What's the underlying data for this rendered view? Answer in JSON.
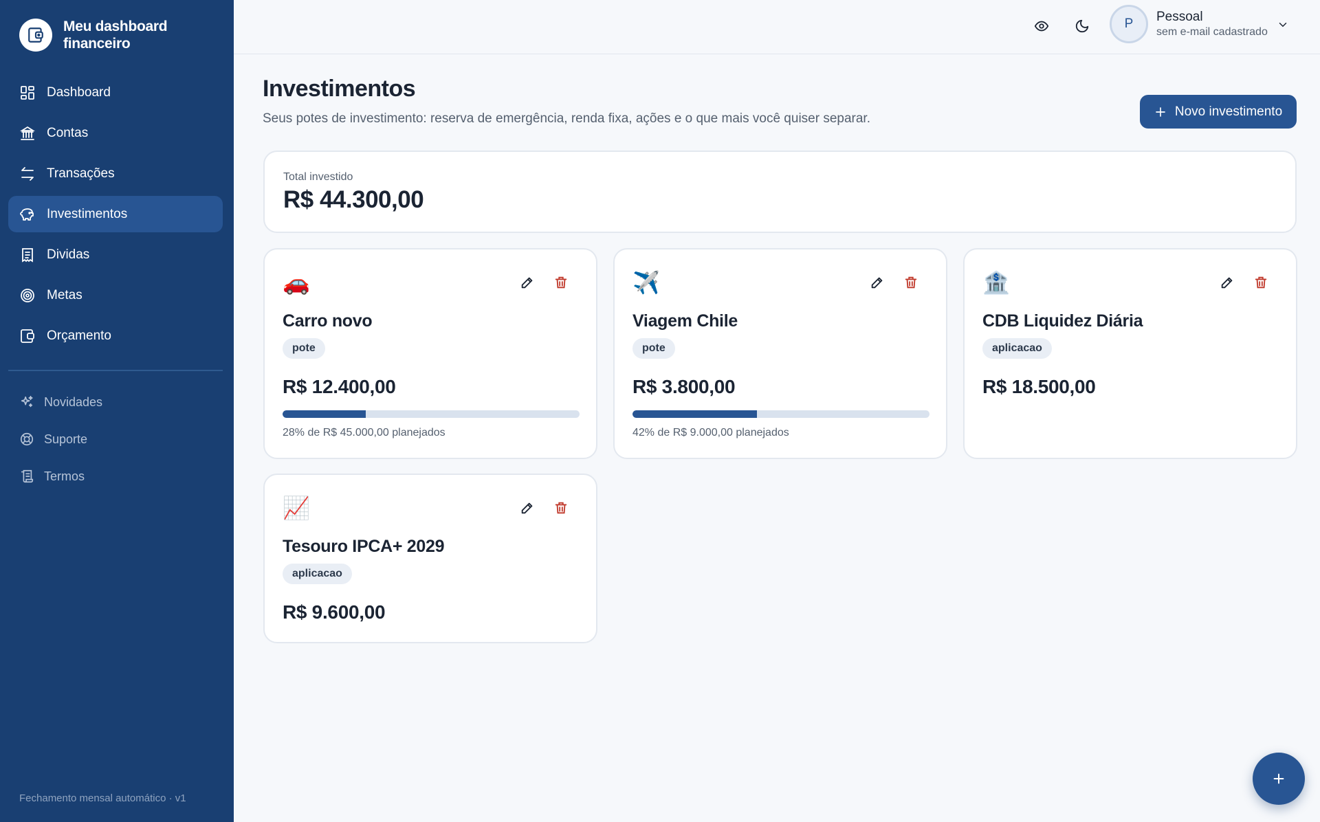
{
  "app": {
    "title": "Meu dashboard financeiro"
  },
  "sidebar": {
    "items": [
      {
        "label": "Dashboard",
        "icon": "grid-icon"
      },
      {
        "label": "Contas",
        "icon": "bank-icon"
      },
      {
        "label": "Transações",
        "icon": "arrows-exchange-icon"
      },
      {
        "label": "Investimentos",
        "icon": "piggy-bank-icon",
        "active": true
      },
      {
        "label": "Dividas",
        "icon": "receipt-icon"
      },
      {
        "label": "Metas",
        "icon": "target-icon"
      },
      {
        "label": "Orçamento",
        "icon": "wallet-icon"
      }
    ],
    "secondary": [
      {
        "label": "Novidades",
        "icon": "sparkles-icon"
      },
      {
        "label": "Suporte",
        "icon": "lifebuoy-icon"
      },
      {
        "label": "Termos",
        "icon": "document-icon"
      }
    ],
    "footer": "Fechamento mensal automático · v1"
  },
  "header": {
    "user": {
      "initial": "P",
      "name": "Pessoal",
      "email": "sem e-mail cadastrado"
    }
  },
  "page": {
    "title": "Investimentos",
    "subtitle": "Seus potes de investimento: reserva de emergência, renda fixa, ações e o que mais você quiser separar.",
    "new_button": "Novo investimento"
  },
  "total": {
    "label": "Total investido",
    "value": "R$ 44.300,00"
  },
  "investments": [
    {
      "emoji": "🚗",
      "name": "Carro novo",
      "tag": "pote",
      "value": "R$ 12.400,00",
      "progress": 0.28,
      "progress_text": "28% de R$ 45.000,00 planejados"
    },
    {
      "emoji": "✈️",
      "name": "Viagem Chile",
      "tag": "pote",
      "value": "R$ 3.800,00",
      "progress": 0.42,
      "progress_text": "42% de R$ 9.000,00 planejados"
    },
    {
      "emoji": "🏦",
      "name": "CDB Liquidez Diária",
      "tag": "aplicacao",
      "value": "R$ 18.500,00"
    },
    {
      "emoji": "📈",
      "name": "Tesouro IPCA+ 2029",
      "tag": "aplicacao",
      "value": "R$ 9.600,00"
    }
  ],
  "colors": {
    "sidebar": "#193f72",
    "primary": "#285593",
    "danger": "#c0392b",
    "background": "#f6f8fb"
  }
}
